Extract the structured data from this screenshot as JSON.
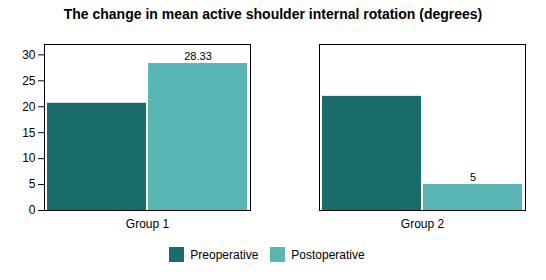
{
  "chart_data": {
    "type": "bar",
    "title": "The change in mean active shoulder internal rotation (degrees)",
    "categories": [
      "Group 1",
      "Group 2"
    ],
    "series": [
      {
        "name": "Preoperative",
        "color": "#1a6b6b",
        "values": [
          20.67,
          22.0
        ]
      },
      {
        "name": "Postoperative",
        "color": "#5ab5b5",
        "values": [
          28.33,
          5.0
        ],
        "data_labels": true
      }
    ],
    "ylim": [
      0,
      32
    ],
    "yticks": [
      0,
      5,
      10,
      15,
      20,
      25,
      30
    ],
    "grid": false,
    "legend": "bottom"
  }
}
